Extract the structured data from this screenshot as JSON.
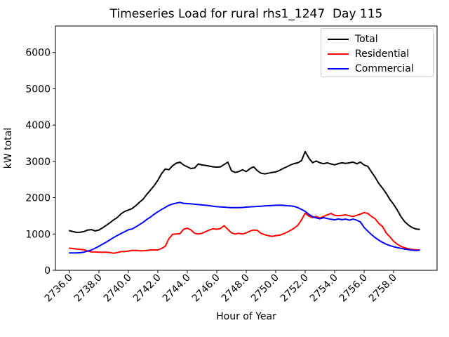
{
  "chart_data": {
    "type": "line",
    "title": "Timeseries Load for rural rhs1_1247  Day 115",
    "xlabel": "Hour of Year",
    "ylabel": "kW total",
    "background_color": "#ffffff",
    "axis_color": "#000000",
    "legend_border_color": "#cccccc",
    "legend_position": "upper-right",
    "grid": false,
    "x_start": 2736.0,
    "x_step": 0.25,
    "xlim": [
      2735.05,
      2760.95
    ],
    "ylim": [
      0,
      6730
    ],
    "xticks": [
      2736,
      2738,
      2740,
      2742,
      2744,
      2746,
      2748,
      2750,
      2752,
      2754,
      2756,
      2758
    ],
    "xtick_decimals": 1,
    "xtick_rotation_deg": 45,
    "yticks": [
      0,
      1000,
      2000,
      3000,
      4000,
      5000,
      6000
    ],
    "series": [
      {
        "name": "Total",
        "color": "#000000",
        "values": [
          1090,
          1065,
          1045,
          1050,
          1070,
          1110,
          1120,
          1085,
          1110,
          1170,
          1240,
          1310,
          1390,
          1455,
          1555,
          1620,
          1660,
          1700,
          1780,
          1870,
          1960,
          2090,
          2210,
          2330,
          2480,
          2660,
          2790,
          2770,
          2880,
          2950,
          2980,
          2900,
          2850,
          2805,
          2820,
          2930,
          2900,
          2890,
          2870,
          2850,
          2840,
          2850,
          2915,
          2980,
          2740,
          2695,
          2720,
          2770,
          2720,
          2800,
          2850,
          2745,
          2675,
          2655,
          2675,
          2695,
          2710,
          2750,
          2805,
          2850,
          2900,
          2940,
          2960,
          3020,
          3270,
          3090,
          2965,
          3010,
          2960,
          2935,
          2960,
          2930,
          2905,
          2940,
          2960,
          2945,
          2960,
          2980,
          2935,
          2980,
          2900,
          2865,
          2710,
          2560,
          2390,
          2260,
          2120,
          1950,
          1820,
          1660,
          1480,
          1340,
          1250,
          1180,
          1140,
          1125
        ]
      },
      {
        "name": "Residential",
        "color": "#ff0000",
        "values": [
          610,
          600,
          585,
          575,
          565,
          530,
          505,
          505,
          500,
          495,
          500,
          490,
          470,
          490,
          515,
          515,
          530,
          545,
          550,
          540,
          535,
          545,
          560,
          560,
          560,
          600,
          660,
          870,
          990,
          1000,
          1010,
          1130,
          1160,
          1110,
          1020,
          1000,
          1020,
          1065,
          1110,
          1145,
          1130,
          1150,
          1230,
          1130,
          1030,
          1000,
          1020,
          1000,
          1030,
          1080,
          1110,
          1100,
          1020,
          980,
          955,
          935,
          955,
          967,
          1000,
          1045,
          1100,
          1160,
          1240,
          1390,
          1570,
          1495,
          1450,
          1483,
          1437,
          1483,
          1528,
          1566,
          1514,
          1502,
          1514,
          1528,
          1502,
          1483,
          1514,
          1547,
          1590,
          1566,
          1483,
          1418,
          1290,
          1205,
          1030,
          920,
          800,
          720,
          660,
          620,
          595,
          575,
          565,
          560
        ]
      },
      {
        "name": "Commercial",
        "color": "#0000ff",
        "values": [
          480,
          478,
          477,
          485,
          500,
          530,
          560,
          610,
          663,
          720,
          775,
          840,
          903,
          960,
          1012,
          1064,
          1115,
          1140,
          1195,
          1257,
          1320,
          1400,
          1465,
          1545,
          1610,
          1675,
          1730,
          1790,
          1825,
          1850,
          1870,
          1845,
          1837,
          1830,
          1820,
          1810,
          1800,
          1790,
          1780,
          1766,
          1753,
          1745,
          1740,
          1730,
          1727,
          1725,
          1727,
          1730,
          1740,
          1748,
          1753,
          1760,
          1766,
          1773,
          1780,
          1785,
          1790,
          1792,
          1790,
          1780,
          1773,
          1760,
          1727,
          1676,
          1624,
          1540,
          1480,
          1445,
          1420,
          1450,
          1425,
          1405,
          1390,
          1415,
          1395,
          1410,
          1380,
          1410,
          1380,
          1330,
          1180,
          1077,
          985,
          900,
          830,
          770,
          720,
          680,
          650,
          625,
          605,
          585,
          570,
          557,
          548,
          553
        ]
      }
    ]
  }
}
